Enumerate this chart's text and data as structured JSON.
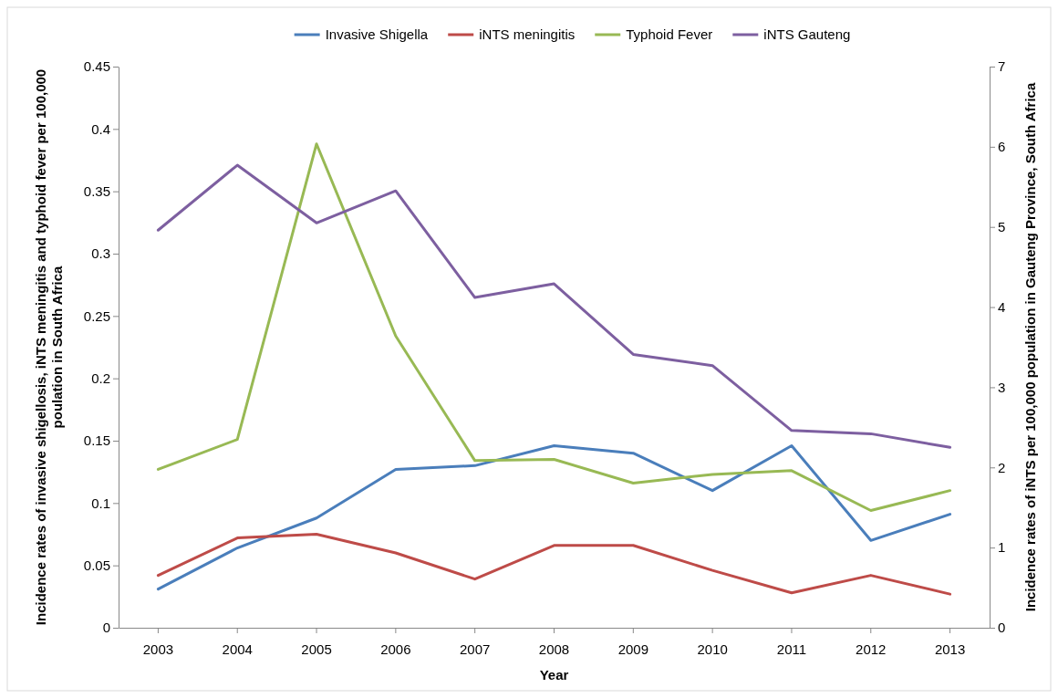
{
  "chart_data": {
    "type": "line",
    "xlabel": "Year",
    "ylabel": "Incidence rates of invasive shigellosis, iNTS meningitis and typhoid fever per 100,000 poulation in South Africa",
    "y2label": "Incidence rates of iNTS per 100,000 population in Gauteng Province, South Africa",
    "categories": [
      "2003",
      "2004",
      "2005",
      "2006",
      "2007",
      "2008",
      "2009",
      "2010",
      "2011",
      "2012",
      "2013"
    ],
    "ylim": [
      0,
      0.45
    ],
    "yticks": [
      0,
      0.05,
      0.1,
      0.15,
      0.2,
      0.25,
      0.3,
      0.35,
      0.4,
      0.45
    ],
    "y2lim": [
      0,
      7
    ],
    "y2ticks": [
      0,
      1,
      2,
      3,
      4,
      5,
      6,
      7
    ],
    "grid": false,
    "legend": "top",
    "marker": "none",
    "line_style": "solid",
    "series": [
      {
        "name": "Invasive Shigella",
        "color": "#4a7ebb",
        "values": [
          0.031,
          0.064,
          0.088,
          0.127,
          0.13,
          0.146,
          0.14,
          0.11,
          0.146,
          0.07,
          0.091
        ]
      },
      {
        "name": "iNTS meningitis",
        "color": "#be4b48",
        "values": [
          0.042,
          0.072,
          0.075,
          0.06,
          0.039,
          0.066,
          0.066,
          0.046,
          0.028,
          0.042,
          0.027
        ]
      },
      {
        "name": "Typhoid Fever",
        "color": "#98b954",
        "values": [
          0.127,
          0.151,
          0.388,
          0.234,
          0.134,
          0.135,
          0.116,
          0.123,
          0.126,
          0.094,
          0.11
        ]
      },
      {
        "name": "iNTS Gauteng",
        "color": "#7d5fa0",
        "axis": "y2",
        "values": [
          4.96,
          5.77,
          5.05,
          5.45,
          4.12,
          4.29,
          3.41,
          3.27,
          2.46,
          2.42,
          2.25
        ]
      }
    ]
  }
}
